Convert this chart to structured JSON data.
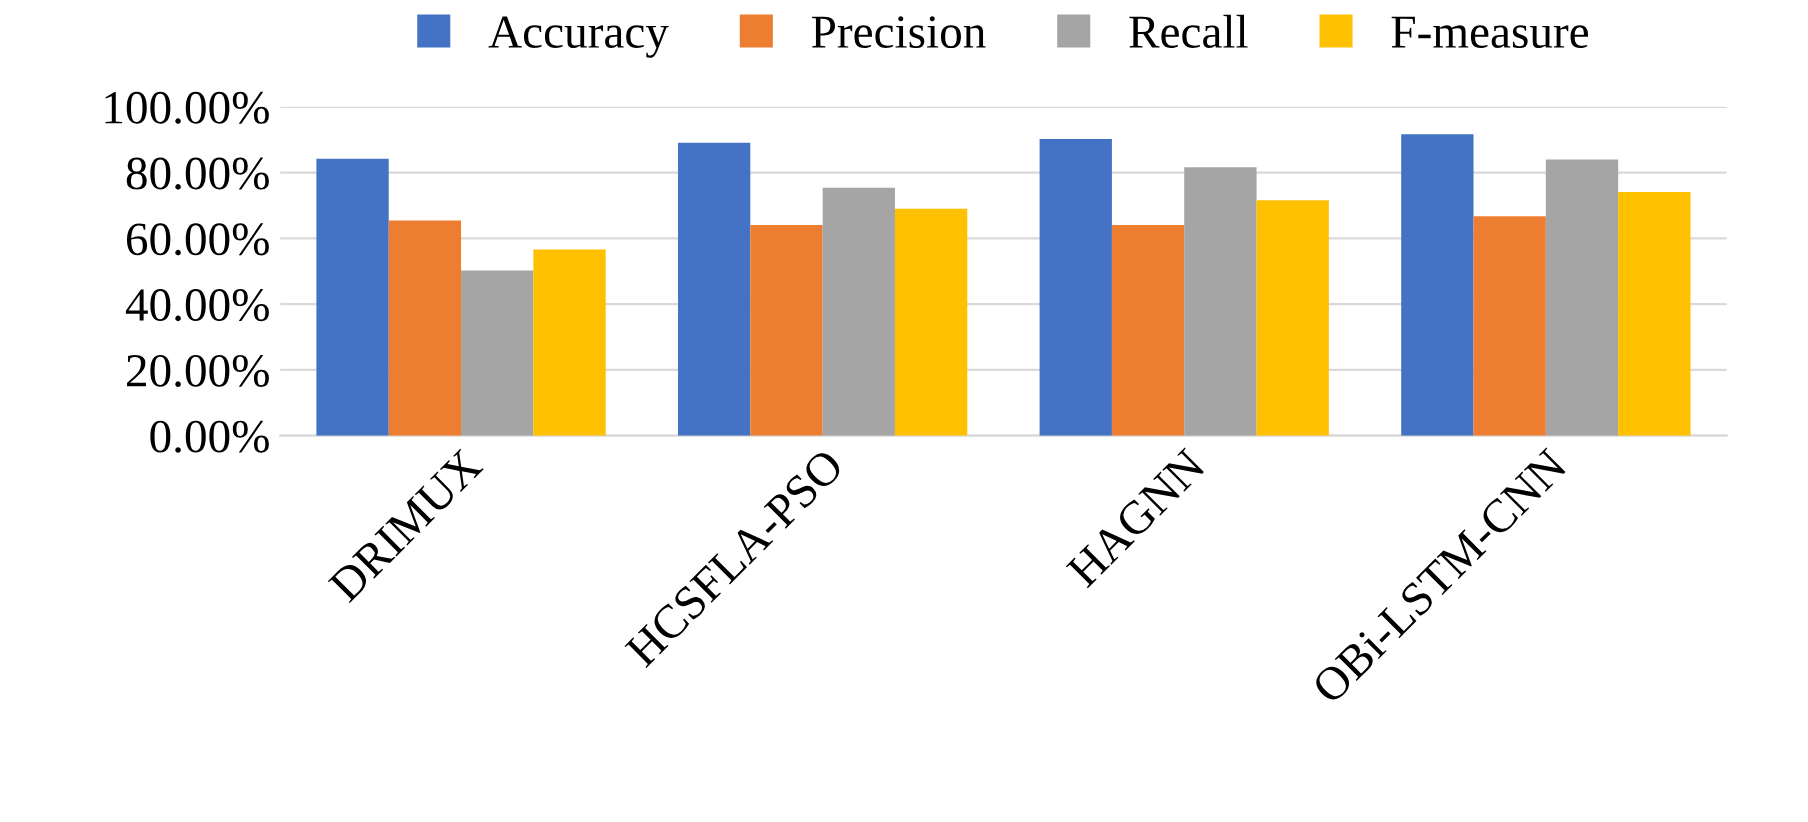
{
  "chart_data": {
    "type": "bar",
    "categories": [
      "DRIMUX",
      "HCSFLA-PSO",
      "HAGNN",
      "OBi-LSTM-CNN"
    ],
    "series": [
      {
        "name": "Accuracy",
        "color": "#4472c4",
        "values": [
          84.2,
          89.1,
          90.2,
          91.7
        ]
      },
      {
        "name": "Precision",
        "color": "#ed7d31",
        "values": [
          65.4,
          64.1,
          64.1,
          66.7
        ]
      },
      {
        "name": "Recall",
        "color": "#a5a5a5",
        "values": [
          50.2,
          75.4,
          81.6,
          84.0
        ]
      },
      {
        "name": "F-measure",
        "color": "#ffc000",
        "values": [
          56.6,
          69.0,
          71.6,
          74.1
        ]
      }
    ],
    "ylim": [
      0,
      100
    ],
    "yticks": [
      {
        "value": 0,
        "label": "0.00%"
      },
      {
        "value": 20,
        "label": "20.00%"
      },
      {
        "value": 40,
        "label": "40.00%"
      },
      {
        "value": 60,
        "label": "60.00%"
      },
      {
        "value": 80,
        "label": "80.00%"
      },
      {
        "value": 100,
        "label": "100.00%"
      }
    ],
    "grid": "y",
    "legend": "top"
  }
}
